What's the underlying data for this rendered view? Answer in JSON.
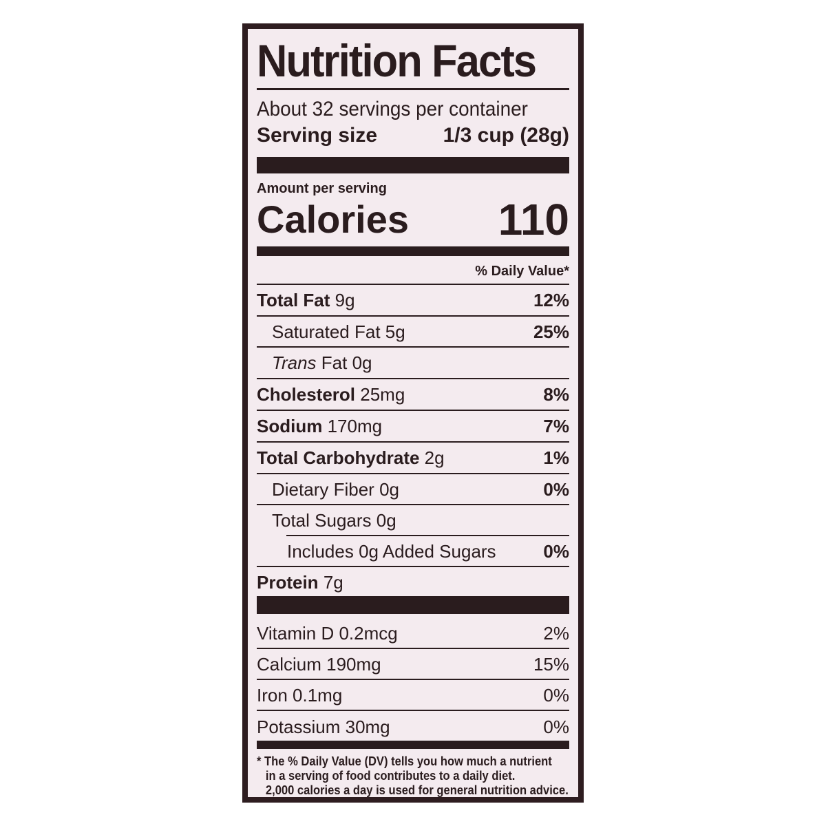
{
  "title": "Nutrition Facts",
  "servings_per_container": "About 32 servings per container",
  "serving_size_label": "Serving size",
  "serving_size_value": "1/3 cup (28g)",
  "amount_per_serving": "Amount per serving",
  "calories_label": "Calories",
  "calories_value": "110",
  "daily_value_header": "% Daily Value*",
  "nutrients": [
    {
      "name": "Total Fat",
      "amount": "9g",
      "dv": "12%"
    },
    {
      "name": "Saturated Fat",
      "amount": "5g",
      "dv": "25%"
    },
    {
      "name": "Trans",
      "name_suffix": "Fat",
      "amount": "0g",
      "dv": ""
    },
    {
      "name": "Cholesterol",
      "amount": "25mg",
      "dv": "8%"
    },
    {
      "name": "Sodium",
      "amount": "170mg",
      "dv": "7%"
    },
    {
      "name": "Total Carbohydrate",
      "amount": "2g",
      "dv": "1%"
    },
    {
      "name": "Dietary Fiber",
      "amount": "0g",
      "dv": "0%"
    },
    {
      "name": "Total Sugars",
      "amount": "0g",
      "dv": ""
    },
    {
      "name": "Includes 0g Added Sugars",
      "amount": "",
      "dv": "0%"
    },
    {
      "name": "Protein",
      "amount": "7g",
      "dv": ""
    }
  ],
  "vitamins": [
    {
      "name": "Vitamin D 0.2mcg",
      "dv": "2%"
    },
    {
      "name": "Calcium 190mg",
      "dv": "15%"
    },
    {
      "name": "Iron 0.1mg",
      "dv": "0%"
    },
    {
      "name": "Potassium 30mg",
      "dv": "0%"
    }
  ],
  "footnote": [
    "* The % Daily Value (DV) tells you how much a nutrient",
    "in a serving of food contributes to a daily diet.",
    "2,000 calories a day is used for general nutrition advice."
  ],
  "colors": {
    "ink": "#2a1c1e",
    "panel": "#f4ebef"
  }
}
